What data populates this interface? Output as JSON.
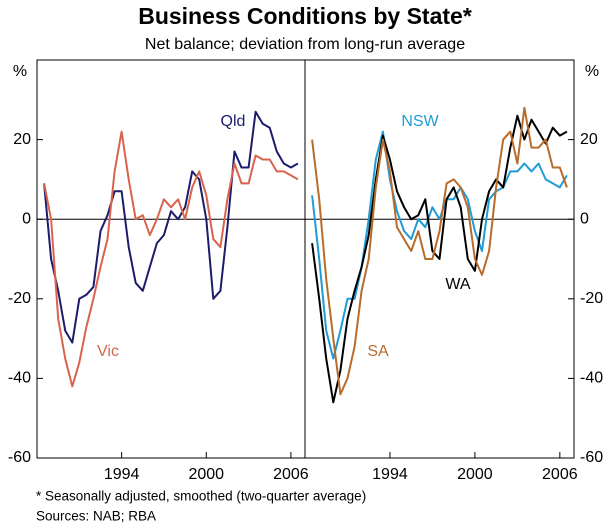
{
  "title": "Business Conditions by State*",
  "subtitle": "Net balance; deviation from long-run average",
  "notes": [
    "*  Seasonally adjusted, smoothed (two-quarter average)",
    "Sources: NAB; RBA"
  ],
  "chart_data": [
    {
      "type": "line",
      "y_label": "%",
      "xlim": [
        1988,
        2007
      ],
      "ylim": [
        -60,
        40
      ],
      "xticks": [
        1994,
        2000,
        2006
      ],
      "yticks": [
        -60,
        -40,
        -20,
        0,
        20
      ],
      "x": [
        1988.5,
        1989,
        1989.5,
        1990,
        1990.5,
        1991,
        1991.5,
        1992,
        1992.5,
        1993,
        1993.5,
        1994,
        1994.5,
        1995,
        1995.5,
        1996,
        1996.5,
        1997,
        1997.5,
        1998,
        1998.5,
        1999,
        1999.5,
        2000,
        2000.5,
        2001,
        2001.5,
        2002,
        2002.5,
        2003,
        2003.5,
        2004,
        2004.5,
        2005,
        2005.5,
        2006,
        2006.5
      ],
      "series": [
        {
          "name": "Qld",
          "color": "#1c1c6b",
          "values": [
            9,
            -10,
            -18,
            -28,
            -31,
            -20,
            -19,
            -17,
            -3,
            1,
            7,
            7,
            -7,
            -16,
            -18,
            -12,
            -6,
            -4,
            2,
            0,
            3,
            12,
            10,
            0,
            -20,
            -18,
            -2,
            17,
            13,
            13,
            27,
            24,
            23,
            17,
            14,
            13,
            14
          ]
        },
        {
          "name": "Vic",
          "color": "#d9634c",
          "values": [
            9,
            0,
            -25,
            -35,
            -42,
            -36,
            -27,
            -20,
            -12,
            -5,
            12,
            22,
            10,
            0,
            1,
            -4,
            0,
            5,
            3,
            5,
            0,
            8,
            12,
            6,
            -5,
            -7,
            5,
            14,
            9,
            9,
            16,
            15,
            15,
            12,
            12,
            11,
            10
          ]
        }
      ]
    },
    {
      "type": "line",
      "y_label": "%",
      "xlim": [
        1988,
        2007
      ],
      "ylim": [
        -60,
        40
      ],
      "xticks": [
        1994,
        2000,
        2006
      ],
      "yticks": [
        -60,
        -40,
        -20,
        0,
        20
      ],
      "x": [
        1988.5,
        1989,
        1989.5,
        1990,
        1990.5,
        1991,
        1991.5,
        1992,
        1992.5,
        1993,
        1993.5,
        1994,
        1994.5,
        1995,
        1995.5,
        1996,
        1996.5,
        1997,
        1997.5,
        1998,
        1998.5,
        1999,
        1999.5,
        2000,
        2000.5,
        2001,
        2001.5,
        2002,
        2002.5,
        2003,
        2003.5,
        2004,
        2004.5,
        2005,
        2005.5,
        2006,
        2006.5
      ],
      "series": [
        {
          "name": "NSW",
          "color": "#1f9bd7",
          "values": [
            6,
            -10,
            -28,
            -35,
            -28,
            -20,
            -20,
            -12,
            0,
            15,
            22,
            10,
            2,
            -3,
            -5,
            0,
            -2,
            3,
            0,
            5,
            5,
            8,
            5,
            -3,
            -8,
            5,
            7,
            8,
            12,
            12,
            14,
            12,
            14,
            10,
            9,
            8,
            11
          ]
        },
        {
          "name": "WA",
          "color": "#000000",
          "values": [
            -6,
            -20,
            -35,
            -46,
            -38,
            -25,
            -18,
            -12,
            -4,
            10,
            21,
            15,
            7,
            3,
            0,
            1,
            5,
            -8,
            -10,
            5,
            8,
            3,
            -10,
            -13,
            0,
            7,
            10,
            8,
            18,
            26,
            20,
            25,
            22,
            19,
            23,
            21,
            22
          ]
        },
        {
          "name": "SA",
          "color": "#b86b2a",
          "values": [
            20,
            5,
            -15,
            -30,
            -44,
            -40,
            -32,
            -18,
            -10,
            8,
            20,
            12,
            -2,
            -5,
            -8,
            -3,
            -10,
            -10,
            -3,
            9,
            10,
            8,
            3,
            -10,
            -14,
            -8,
            8,
            20,
            22,
            14,
            28,
            18,
            18,
            20,
            13,
            13,
            8
          ]
        }
      ]
    }
  ]
}
